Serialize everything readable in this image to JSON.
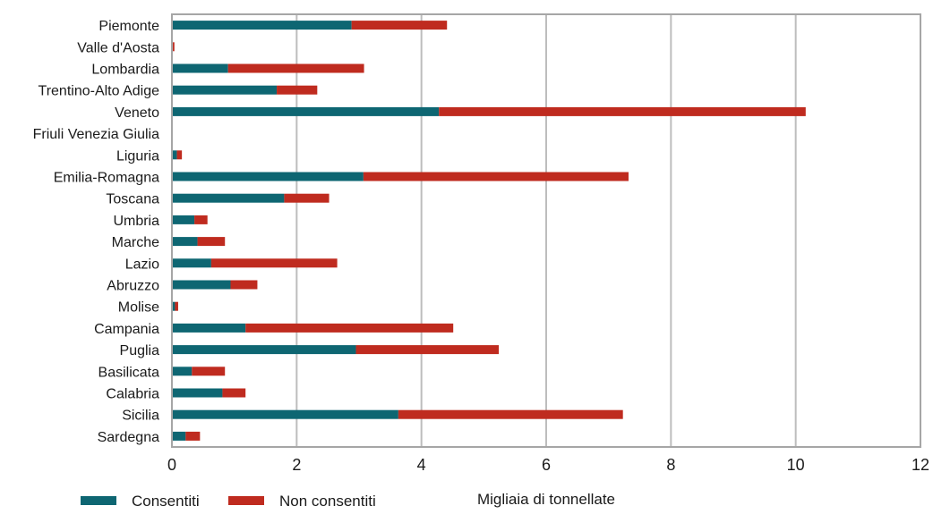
{
  "chart_data": {
    "type": "bar",
    "orientation": "horizontal",
    "stacked": true,
    "categories": [
      "Piemonte",
      "Valle d'Aosta",
      "Lombardia",
      "Trentino-Alto Adige",
      "Veneto",
      "Friuli Venezia Giulia",
      "Liguria",
      "Emilia-Romagna",
      "Toscana",
      "Umbria",
      "Marche",
      "Lazio",
      "Abruzzo",
      "Molise",
      "Campania",
      "Puglia",
      "Basilicata",
      "Calabria",
      "Sicilia",
      "Sardegna"
    ],
    "series": [
      {
        "name": "Consentiti",
        "color": "#0e6672",
        "values": [
          2.88,
          0.0,
          0.9,
          1.68,
          4.28,
          0.0,
          0.08,
          3.07,
          1.8,
          0.36,
          0.41,
          0.63,
          0.94,
          0.05,
          1.18,
          2.95,
          0.32,
          0.81,
          3.63,
          0.22
        ]
      },
      {
        "name": "Non consentiti",
        "color": "#bf2b1f",
        "values": [
          1.53,
          0.04,
          2.18,
          0.65,
          5.88,
          0.0,
          0.08,
          4.25,
          0.72,
          0.21,
          0.44,
          2.02,
          0.43,
          0.05,
          3.33,
          2.29,
          0.53,
          0.37,
          3.6,
          0.23
        ]
      }
    ],
    "xlabel": "Migliaia di tonnellate",
    "ylabel": "",
    "xlim": [
      0,
      12
    ],
    "xticks": [
      "0",
      "2",
      "4",
      "6",
      "8",
      "10",
      "12"
    ],
    "grid": "vertical",
    "legend_position": "bottom-left"
  }
}
